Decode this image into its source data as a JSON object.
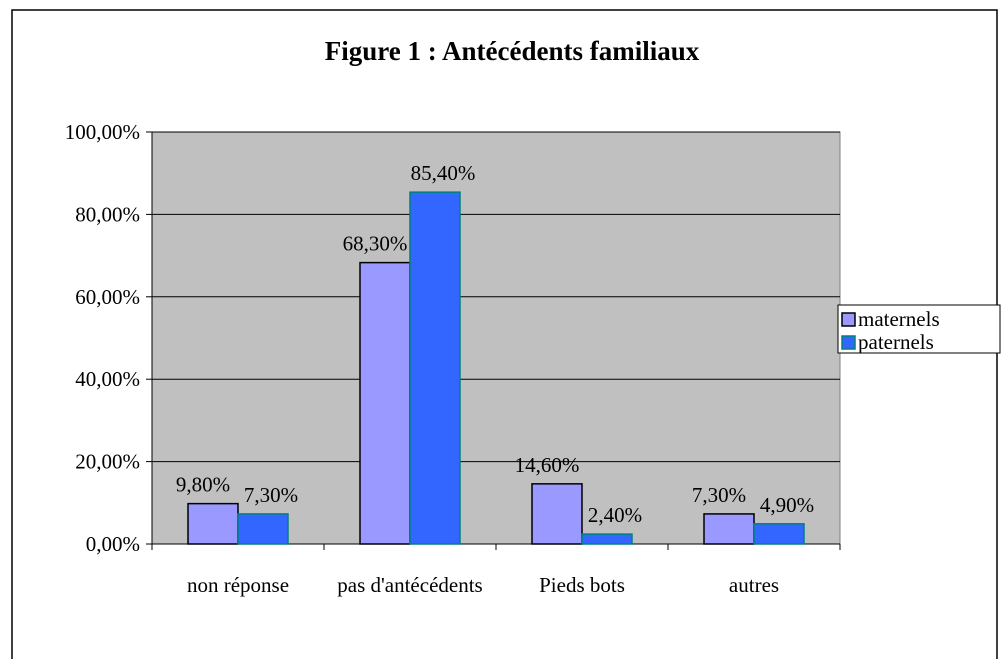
{
  "chart_data": {
    "type": "bar",
    "title": "Figure 1 : Antécédents familiaux",
    "categories": [
      "non réponse",
      "pas d'antécédents",
      "Pieds bots",
      "autres"
    ],
    "series": [
      {
        "name": "maternels",
        "color": "#9999ff",
        "values": [
          9.8,
          68.3,
          14.6,
          7.3
        ],
        "value_labels": [
          "9,80%",
          "68,30%",
          "14,60%",
          "7,30%"
        ]
      },
      {
        "name": "paternels",
        "color": "#3366ff",
        "values": [
          7.3,
          85.4,
          2.4,
          4.9
        ],
        "value_labels": [
          "7,30%",
          "85,40%",
          "2,40%",
          "4,90%"
        ]
      }
    ],
    "ylim": [
      0,
      100
    ],
    "yticks": [
      {
        "value": 0,
        "label": "0,00%"
      },
      {
        "value": 20,
        "label": "20,00%"
      },
      {
        "value": 40,
        "label": "40,00%"
      },
      {
        "value": 60,
        "label": "60,00%"
      },
      {
        "value": 80,
        "label": "80,00%"
      },
      {
        "value": 100,
        "label": "100,00%"
      }
    ],
    "grid": true,
    "legend": "right"
  }
}
